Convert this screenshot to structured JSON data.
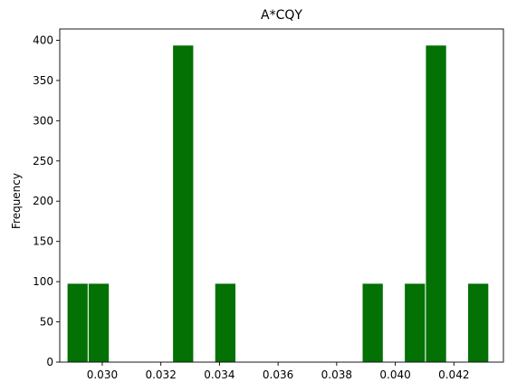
{
  "chart_data": {
    "type": "bar",
    "title": "A*CQY",
    "xlabel": "",
    "ylabel": "Frequency",
    "xlim": [
      0.02855,
      0.04369
    ],
    "ylim": [
      0,
      414
    ],
    "grid": false,
    "bar_color": "#037103",
    "bar_edge_color": "#ffffff",
    "bin_width": 0.00072,
    "bins": [
      {
        "start": 0.0288,
        "count": 98
      },
      {
        "start": 0.02952,
        "count": 98
      },
      {
        "start": 0.0324,
        "count": 394
      },
      {
        "start": 0.03384,
        "count": 98
      },
      {
        "start": 0.03887,
        "count": 98
      },
      {
        "start": 0.04031,
        "count": 98
      },
      {
        "start": 0.04103,
        "count": 394
      },
      {
        "start": 0.04247,
        "count": 98
      }
    ],
    "x_ticks": [
      {
        "value": 0.03,
        "label": "0.030"
      },
      {
        "value": 0.032,
        "label": "0.032"
      },
      {
        "value": 0.034,
        "label": "0.034"
      },
      {
        "value": 0.036,
        "label": "0.036"
      },
      {
        "value": 0.038,
        "label": "0.038"
      },
      {
        "value": 0.04,
        "label": "0.040"
      },
      {
        "value": 0.042,
        "label": "0.042"
      }
    ],
    "y_ticks": [
      {
        "value": 0,
        "label": "0"
      },
      {
        "value": 50,
        "label": "50"
      },
      {
        "value": 100,
        "label": "100"
      },
      {
        "value": 150,
        "label": "150"
      },
      {
        "value": 200,
        "label": "200"
      },
      {
        "value": 250,
        "label": "250"
      },
      {
        "value": 300,
        "label": "300"
      },
      {
        "value": 350,
        "label": "350"
      },
      {
        "value": 400,
        "label": "400"
      }
    ]
  }
}
